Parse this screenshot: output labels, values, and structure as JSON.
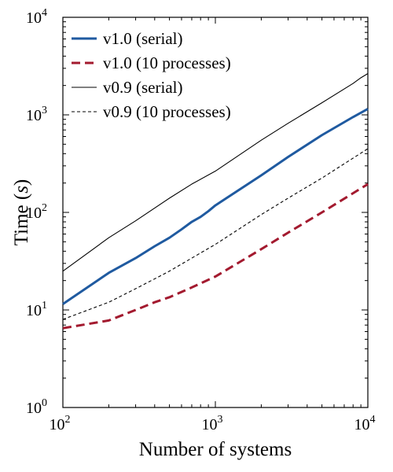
{
  "chart_data": {
    "type": "line",
    "xscale": "log",
    "yscale": "log",
    "xlim": [
      100,
      10000
    ],
    "ylim": [
      1,
      10000
    ],
    "xlabel": "Number of systems",
    "ylabel_prefix": "Time (",
    "ylabel_var": "s",
    "ylabel_suffix": ")",
    "xticks": [
      {
        "value": 100,
        "base": "10",
        "exp": "2"
      },
      {
        "value": 1000,
        "base": "10",
        "exp": "3"
      },
      {
        "value": 10000,
        "base": "10",
        "exp": "4"
      }
    ],
    "yticks": [
      {
        "value": 1,
        "base": "10",
        "exp": "0"
      },
      {
        "value": 10,
        "base": "10",
        "exp": "1"
      },
      {
        "value": 100,
        "base": "10",
        "exp": "2"
      },
      {
        "value": 1000,
        "base": "10",
        "exp": "3"
      },
      {
        "value": 10000,
        "base": "10",
        "exp": "4"
      }
    ],
    "grid": false,
    "legend_position": "top-left",
    "series": [
      {
        "name": "v1.0 (serial)",
        "color": "#1f5aa0",
        "style": "solid",
        "weight": "thick",
        "x": [
          100,
          200,
          300,
          400,
          500,
          600,
          700,
          800,
          900,
          1000,
          2000,
          3000,
          5000,
          8000,
          10000
        ],
        "y": [
          11.5,
          24,
          34,
          45,
          55,
          67,
          80,
          90,
          103,
          118,
          240,
          370,
          620,
          950,
          1150
        ]
      },
      {
        "name": "v1.0 (10 processes)",
        "color": "#a31a2f",
        "style": "dashed",
        "weight": "thick",
        "x": [
          100,
          200,
          300,
          400,
          500,
          700,
          1000,
          2000,
          3000,
          5000,
          10000
        ],
        "y": [
          6.5,
          7.8,
          10,
          12,
          13.5,
          17,
          22,
          42,
          62,
          100,
          195
        ]
      },
      {
        "name": "v0.9 (serial)",
        "color": "#000000",
        "style": "solid",
        "weight": "thin",
        "x": [
          100,
          200,
          300,
          500,
          700,
          1000,
          2000,
          3000,
          5000,
          8000,
          9000,
          10000
        ],
        "y": [
          25,
          55,
          82,
          140,
          195,
          265,
          550,
          820,
          1330,
          2100,
          2400,
          2650
        ]
      },
      {
        "name": "v0.9 (10 processes)",
        "color": "#000000",
        "style": "dashed",
        "weight": "thin",
        "x": [
          100,
          200,
          300,
          500,
          700,
          1000,
          2000,
          3000,
          5000,
          10000
        ],
        "y": [
          8,
          12,
          16.5,
          25,
          34,
          47,
          95,
          140,
          225,
          450
        ]
      }
    ]
  }
}
